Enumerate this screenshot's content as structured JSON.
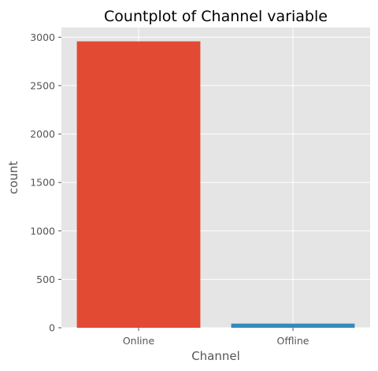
{
  "chart_data": {
    "type": "bar",
    "title": "Countplot of Channel variable",
    "xlabel": "Channel",
    "ylabel": "count",
    "categories": [
      "Online",
      "Offline"
    ],
    "values": [
      2957,
      43
    ],
    "ylim": [
      0,
      3100
    ],
    "yticks": [
      0,
      500,
      1000,
      1500,
      2000,
      2500,
      3000
    ],
    "grid": true,
    "legend": "none",
    "colors": {
      "bars": [
        "#E24A33",
        "#348ABD"
      ],
      "plot_background": "#E5E5E5",
      "grid": "#FFFFFF"
    }
  }
}
